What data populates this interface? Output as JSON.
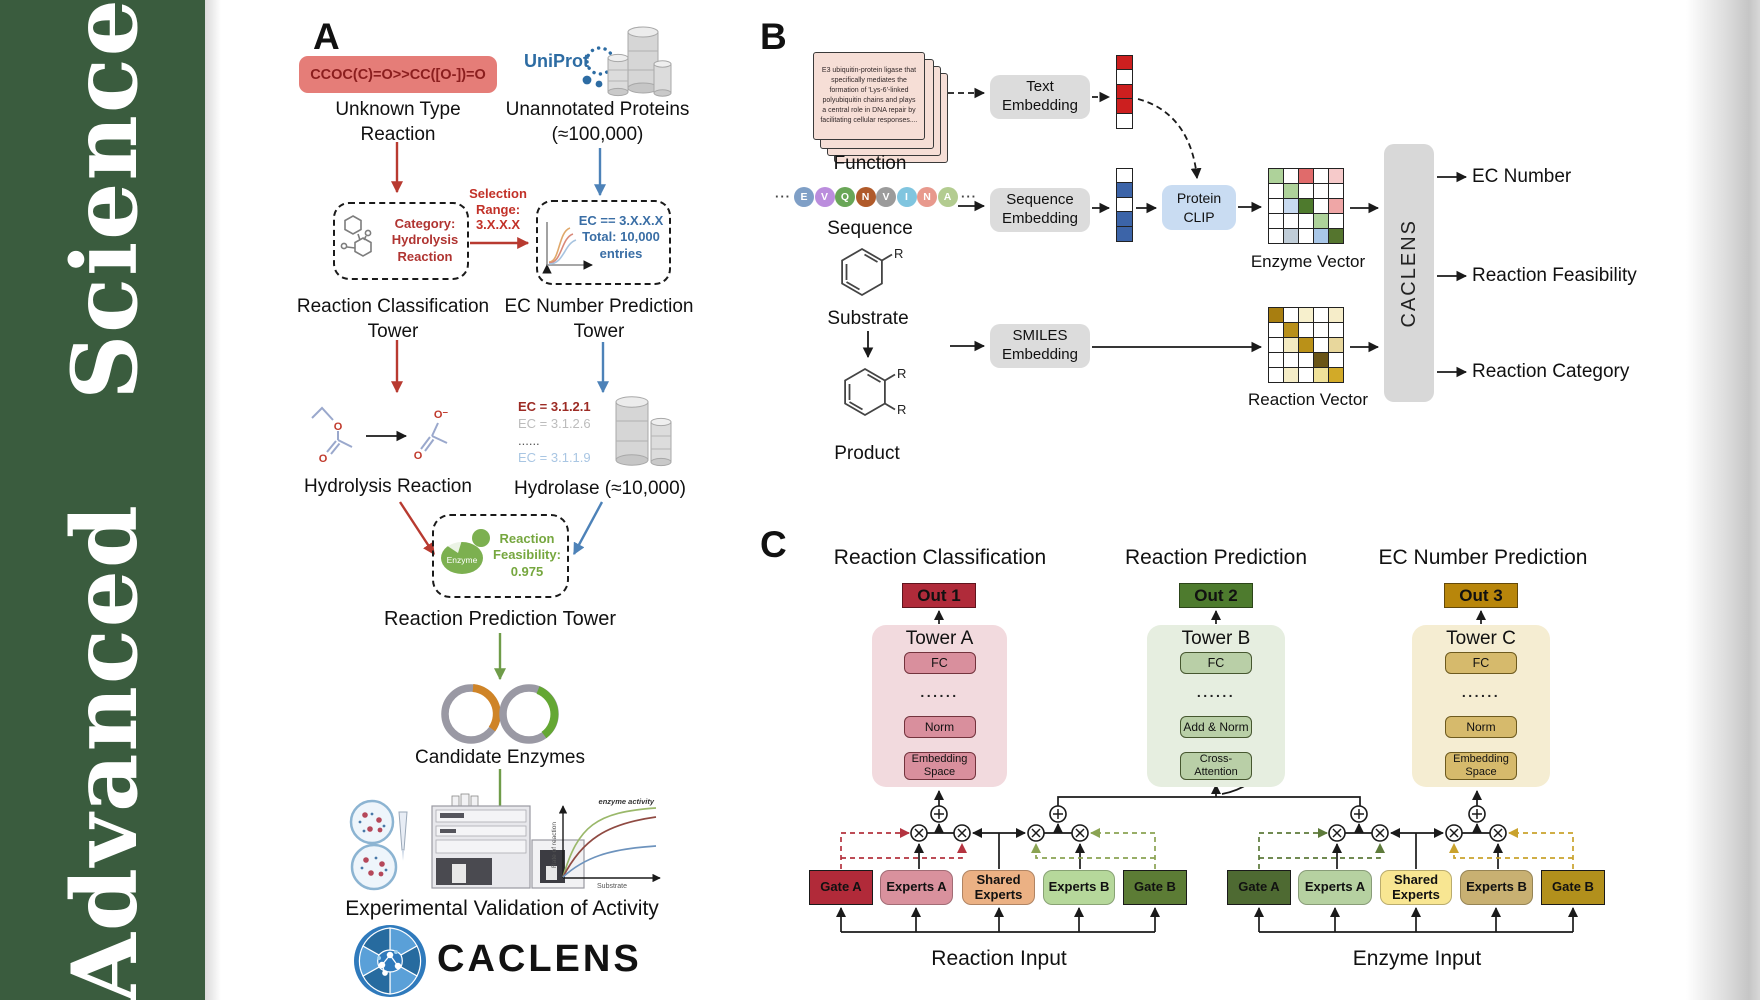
{
  "sidebar": {
    "journal": "Advanced Science",
    "bg": "#3a5c3e"
  },
  "panel_a": {
    "label": "A",
    "smiles_box": "CCOC(C)=O>>CC([O-])=O",
    "unknown_reaction": "Unknown Type Reaction",
    "uniprot": "UniProt",
    "unannotated": "Unannotated Proteins (≈100,000)",
    "selection_range": "Selection Range: 3.X.X.X",
    "category_box": "Category: Hydrolysis Reaction",
    "ec_box": "EC == 3.X.X.X Total: 10,000 entries",
    "tower_classification": "Reaction Classification Tower",
    "tower_ec": "EC Number Prediction Tower",
    "ec_list": [
      {
        "text": "EC = 3.1.2.1",
        "color": "#9c2b24"
      },
      {
        "text": "EC = 3.1.2.6",
        "color": "#bcbcbc"
      },
      {
        "text": "......",
        "color": "#555555"
      },
      {
        "text": "EC = 3.1.1.9",
        "color": "#a9c6e3"
      }
    ],
    "hydrolysis": "Hydrolysis Reaction",
    "hydrolase": "Hydrolase (≈10,000)",
    "enzyme_badge": "Enzyme",
    "feasibility": "Reaction Feasibility: 0.975",
    "tower_prediction": "Reaction Prediction Tower",
    "candidates": "Candidate Enzymes",
    "validation": "Experimental Validation of Activity",
    "graph": {
      "curve_label": "enzyme activity",
      "ylabel": "Rate of reaction",
      "xlabel": "Substrate"
    },
    "brand": "CACLENS",
    "atom_o": "O",
    "atom_o_minus": "O⁻"
  },
  "panel_b": {
    "label": "B",
    "function_card": "E3 ubiquitin-protein ligase that specifically mediates the formation of 'Lys-6'-linked polyubiquitin chains and plays a central role in DNA repair by facilitating cellular responses....",
    "function_label": "Function",
    "sequence_label": "Sequence",
    "ellipsis": "···",
    "sequence": [
      {
        "letter": "E",
        "color": "#7f9fc6"
      },
      {
        "letter": "V",
        "color": "#bb8ddd"
      },
      {
        "letter": "Q",
        "color": "#69a657"
      },
      {
        "letter": "N",
        "color": "#b05a2a"
      },
      {
        "letter": "V",
        "color": "#9b9b9b"
      },
      {
        "letter": "I",
        "color": "#80c5df"
      },
      {
        "letter": "N",
        "color": "#e8998d"
      },
      {
        "letter": "A",
        "color": "#b3cc90"
      }
    ],
    "substrate_label": "Substrate",
    "product_label": "Product",
    "r_label": "R",
    "text_embedding": "Text Embedding",
    "sequence_embedding": "Sequence Embedding",
    "smiles_embedding": "SMILES Embedding",
    "protein_clip": "Protein CLIP",
    "text_vector": [
      "#cc1f1f",
      "#ffffff",
      "#cc1f1f",
      "#cc1f1f",
      "#ffffff"
    ],
    "seq_vector": [
      "#ffffff",
      "#3c64a8",
      "#ffffff",
      "#3c64a8",
      "#3c64a8"
    ],
    "enzyme_matrix": [
      [
        "#aed29a",
        "#ffffff",
        "#e06b6b",
        "#ffffff",
        "#f6caca"
      ],
      [
        "#ffffff",
        "#aed29a",
        "#ffffff",
        "#ffffff",
        "#ffffff"
      ],
      [
        "#ffffff",
        "#c8daf0",
        "#4e7a2d",
        "#ffffff",
        "#efa6a6"
      ],
      [
        "#ffffff",
        "#ffffff",
        "#ffffff",
        "#aed29a",
        "#ffffff"
      ],
      [
        "#ffffff",
        "#c0cdd8",
        "#ffffff",
        "#a9c7e8",
        "#55752e"
      ]
    ],
    "reaction_matrix": [
      [
        "#a87e10",
        "#ffffff",
        "#f7f0cd",
        "#ffffff",
        "#f6edc9"
      ],
      [
        "#ffffff",
        "#b8901b",
        "#ffffff",
        "#ffffff",
        "#ffffff"
      ],
      [
        "#ffffff",
        "#f4ebc2",
        "#ba9118",
        "#ffffff",
        "#e8d79c"
      ],
      [
        "#ffffff",
        "#ffffff",
        "#ffffff",
        "#6a5517",
        "#ffffff"
      ],
      [
        "#ffffff",
        "#f5edc7",
        "#ffffff",
        "#f0e29a",
        "#d2aa28"
      ]
    ],
    "enzyme_vector_label": "Enzyme Vector",
    "reaction_vector_label": "Reaction Vector",
    "caclens_bar": "CACLENS",
    "outputs": [
      "EC Number",
      "Reaction Feasibility",
      "Reaction Category"
    ]
  },
  "panel_c": {
    "label": "C",
    "headings": [
      "Reaction Classification",
      "Reaction Prediction",
      "EC Number Prediction"
    ],
    "outs": [
      "Out 1",
      "Out 2",
      "Out 3"
    ],
    "out_colors": [
      "#b02b3a",
      "#4e7b2e",
      "#b8860b"
    ],
    "towers": [
      {
        "title": "Tower A",
        "fc": "FC",
        "dots": "......",
        "mid": "Norm",
        "bottom": "Embedding Space"
      },
      {
        "title": "Tower B",
        "fc": "FC",
        "dots": "......",
        "mid": "Add & Norm",
        "bottom": "Cross- Attention"
      },
      {
        "title": "Tower C",
        "fc": "FC",
        "dots": "......",
        "mid": "Norm",
        "bottom": "Embedding Space"
      }
    ],
    "reaction_group": {
      "gate_a": "Gate A",
      "experts_a": "Experts A",
      "shared": "Shared Experts",
      "experts_b": "Experts B",
      "gate_b": "Gate B",
      "input": "Reaction Input",
      "colors": {
        "gate_a": "#b12a39",
        "experts_a": "#d9919d",
        "shared": "#ebb184",
        "experts_b": "#b6d89b",
        "gate_b": "#5c7c35"
      }
    },
    "enzyme_group": {
      "gate_a": "Gate A",
      "experts_a": "Experts A",
      "shared": "Shared Experts",
      "experts_b": "Experts B",
      "gate_b": "Gate B",
      "input": "Enzyme Input",
      "colors": {
        "gate_a": "#4e6a32",
        "experts_a": "#b6d1a1",
        "shared": "#f8e692",
        "experts_b": "#c8b072",
        "gate_b": "#b2901c"
      }
    }
  }
}
